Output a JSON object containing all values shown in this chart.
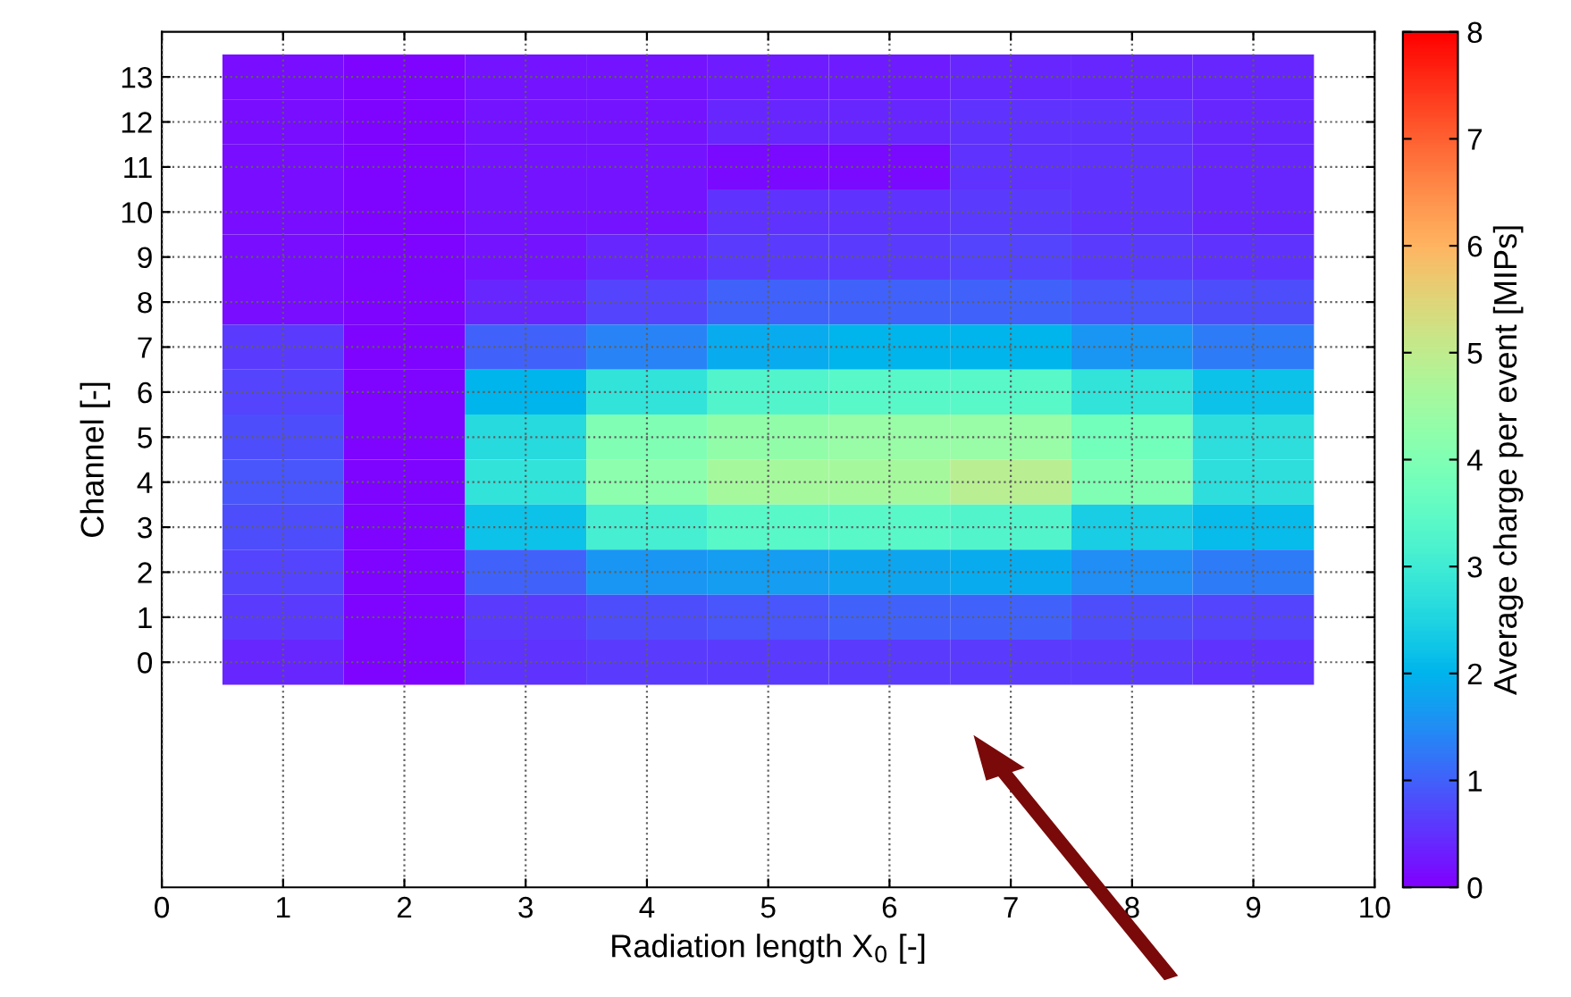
{
  "chart_data": {
    "type": "heatmap",
    "xlabel": "Radiation length X$_{0}$ [-]",
    "ylabel": "Channel [-]",
    "clabel": "Average charge per event [MIPs]",
    "x": [
      1,
      2,
      3,
      4,
      5,
      6,
      7,
      8,
      9
    ],
    "y": [
      13,
      12,
      11,
      10,
      9,
      8,
      7,
      6,
      5,
      4,
      3,
      2,
      1,
      0
    ],
    "cells": [
      [
        0.15,
        0.05,
        0.2,
        0.2,
        0.3,
        0.3,
        0.4,
        0.4,
        0.4
      ],
      [
        0.15,
        0.05,
        0.2,
        0.2,
        0.4,
        0.4,
        0.5,
        0.5,
        0.4
      ],
      [
        0.15,
        0.05,
        0.2,
        0.2,
        0.1,
        0.1,
        0.5,
        0.5,
        0.4
      ],
      [
        0.15,
        0.05,
        0.2,
        0.2,
        0.5,
        0.5,
        0.6,
        0.5,
        0.4
      ],
      [
        0.15,
        0.05,
        0.2,
        0.4,
        0.6,
        0.6,
        0.7,
        0.6,
        0.5
      ],
      [
        0.15,
        0.05,
        0.4,
        0.7,
        1.0,
        1.0,
        1.0,
        0.9,
        0.8
      ],
      [
        0.6,
        0.05,
        1.0,
        1.4,
        1.9,
        2.0,
        2.0,
        1.6,
        1.3
      ],
      [
        0.7,
        0.05,
        2.0,
        2.8,
        3.3,
        3.4,
        3.4,
        2.8,
        2.2
      ],
      [
        0.8,
        0.05,
        2.6,
        4.0,
        4.3,
        4.4,
        4.4,
        3.8,
        2.7
      ],
      [
        0.9,
        0.05,
        2.8,
        4.2,
        4.6,
        4.6,
        4.9,
        4.0,
        2.7
      ],
      [
        0.8,
        0.05,
        2.2,
        3.1,
        3.4,
        3.4,
        3.3,
        2.4,
        2.1
      ],
      [
        0.7,
        0.05,
        1.0,
        1.6,
        1.7,
        1.8,
        1.9,
        1.5,
        1.3
      ],
      [
        0.6,
        0.05,
        0.6,
        0.8,
        0.9,
        1.0,
        1.0,
        0.8,
        0.7
      ],
      [
        0.4,
        0.05,
        0.5,
        0.6,
        0.6,
        0.6,
        0.6,
        0.6,
        0.5
      ]
    ],
    "xlim": [
      0,
      10
    ],
    "xticks": [
      0,
      1,
      2,
      3,
      4,
      5,
      6,
      7,
      8,
      9,
      10
    ],
    "ylim": [
      -5,
      14
    ],
    "yticks": [
      0,
      1,
      2,
      3,
      4,
      5,
      6,
      7,
      8,
      9,
      10,
      11,
      12,
      13
    ],
    "clim": [
      0,
      8
    ],
    "cticks": [
      0,
      1,
      2,
      3,
      4,
      5,
      6,
      7,
      8
    ],
    "grid": true
  }
}
